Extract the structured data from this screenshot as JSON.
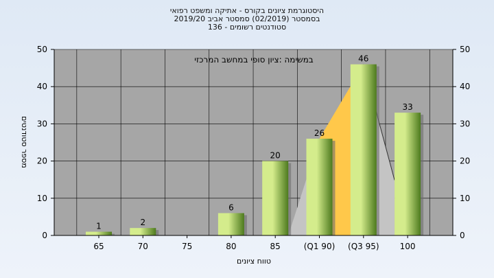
{
  "chart_data": {
    "type": "bar",
    "title_lines": [
      "היסטוגרמת ציונים בקורס - אתיקה ומשפט רפואי",
      "בסמסטר (02/2019) סמסטר אביב 2019/20",
      "סטודנטים רשומים - 136"
    ],
    "annotation": "במשימה :ציון סופי במחשב המרכזי",
    "categories": [
      "65",
      "70",
      "75",
      "80",
      "85",
      "(Q1 90)",
      "(Q3 95)",
      "100"
    ],
    "values": [
      1,
      2,
      0,
      6,
      20,
      26,
      46,
      33
    ],
    "value_labels": [
      "1",
      "2",
      "",
      "6",
      "20",
      "26",
      "46",
      "33"
    ],
    "xlabel": "טווח ציונים",
    "ylabel": "מספר סטודנטים",
    "ylim": [
      0,
      50
    ],
    "yticks": [
      0,
      10,
      20,
      30,
      40,
      50
    ],
    "grid": true,
    "quartile_highlight": {
      "from_category": "(Q1 90)",
      "to_category": "(Q3 95)"
    },
    "colors": {
      "plot_bg": "#a6a6a6",
      "bar_light": "#d4ec8c",
      "bar_dark": "#4d7a1e",
      "quartile_fill": "#ffc84a",
      "grid": "#000000"
    }
  }
}
